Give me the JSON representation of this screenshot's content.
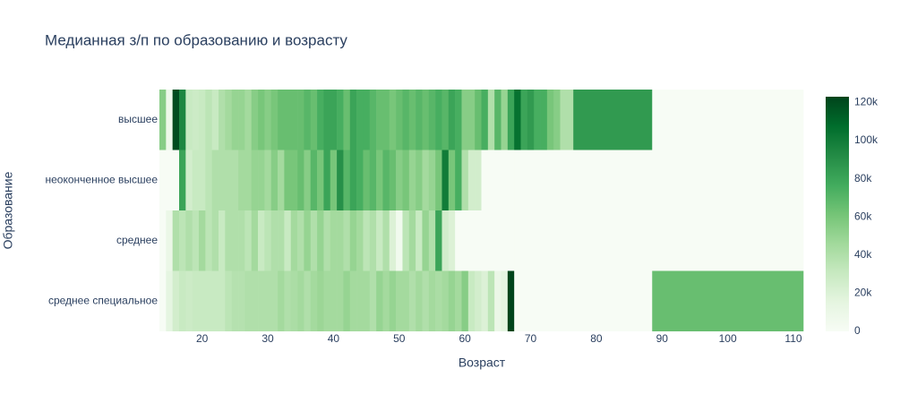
{
  "chart_data": {
    "type": "heatmap",
    "title": "Медианная з/п по образованию и возрасту",
    "xlabel": "Возраст",
    "ylabel": "Образование",
    "y": [
      "высшее",
      "неоконченное высшее",
      "среднее",
      "среднее специальное"
    ],
    "x": [
      14,
      15,
      16,
      17,
      18,
      19,
      20,
      21,
      22,
      23,
      24,
      25,
      26,
      27,
      28,
      29,
      30,
      31,
      32,
      33,
      34,
      35,
      36,
      37,
      38,
      39,
      40,
      41,
      42,
      43,
      44,
      45,
      46,
      47,
      48,
      49,
      50,
      51,
      52,
      53,
      54,
      55,
      56,
      57,
      58,
      59,
      60,
      61,
      62,
      63,
      64,
      65,
      66,
      67,
      68,
      69,
      70,
      71,
      72,
      73,
      74,
      75,
      76,
      77,
      100
    ],
    "z": [
      [
        55000,
        8000,
        120000,
        95000,
        30000,
        28000,
        30000,
        35000,
        30000,
        40000,
        45000,
        50000,
        50000,
        45000,
        55000,
        60000,
        55000,
        60000,
        65000,
        65000,
        65000,
        65000,
        70000,
        65000,
        75000,
        80000,
        80000,
        75000,
        65000,
        80000,
        75000,
        75000,
        70000,
        65000,
        65000,
        60000,
        65000,
        70000,
        65000,
        70000,
        65000,
        70000,
        75000,
        70000,
        80000,
        75000,
        55000,
        55000,
        65000,
        75000,
        40000,
        70000,
        50000,
        80000,
        105000,
        80000,
        85000,
        75000,
        75000,
        60000,
        55000,
        40000,
        40000,
        85000,
        0
      ],
      [
        0,
        0,
        0,
        80000,
        25000,
        30000,
        30000,
        35000,
        40000,
        40000,
        40000,
        40000,
        45000,
        45000,
        50000,
        50000,
        45000,
        55000,
        45000,
        60000,
        60000,
        65000,
        55000,
        70000,
        60000,
        80000,
        60000,
        90000,
        70000,
        80000,
        75000,
        65000,
        70000,
        60000,
        70000,
        65000,
        55000,
        60000,
        50000,
        55000,
        45000,
        50000,
        60000,
        100000,
        60000,
        75000,
        40000,
        25000,
        25000,
        0,
        0,
        0,
        0,
        0,
        0,
        0,
        0,
        0,
        0,
        0,
        0,
        0,
        0,
        0,
        0
      ],
      [
        0,
        10000,
        40000,
        35000,
        40000,
        35000,
        45000,
        35000,
        40000,
        30000,
        40000,
        40000,
        40000,
        35000,
        45000,
        30000,
        35000,
        40000,
        40000,
        30000,
        45000,
        40000,
        50000,
        40000,
        50000,
        40000,
        45000,
        45000,
        40000,
        50000,
        45000,
        35000,
        40000,
        30000,
        40000,
        20000,
        5000,
        35000,
        45000,
        30000,
        50000,
        40000,
        80000,
        25000,
        20000,
        0,
        0,
        0,
        0,
        0,
        0,
        0,
        0,
        0,
        0,
        0,
        0,
        0,
        0,
        0,
        0,
        0,
        0,
        0,
        0
      ],
      [
        0,
        15000,
        25000,
        30000,
        28000,
        30000,
        30000,
        30000,
        30000,
        30000,
        35000,
        38000,
        38000,
        40000,
        40000,
        40000,
        40000,
        40000,
        45000,
        40000,
        42000,
        45000,
        40000,
        45000,
        48000,
        45000,
        45000,
        45000,
        50000,
        45000,
        45000,
        45000,
        40000,
        50000,
        45000,
        50000,
        45000,
        45000,
        40000,
        45000,
        40000,
        45000,
        42000,
        45000,
        50000,
        45000,
        55000,
        30000,
        25000,
        20000,
        35000,
        10000,
        15000,
        123000,
        0,
        0,
        0,
        0,
        0,
        0,
        0,
        0,
        0,
        0,
        65000
      ]
    ],
    "xlim": [
      13.5,
      111.5
    ],
    "xticks": [
      20,
      30,
      40,
      50,
      60,
      70,
      80,
      90,
      100,
      110
    ],
    "zlim": [
      0,
      123000
    ],
    "zticks": [
      0,
      {
        "value": 20000,
        "label": "20k"
      },
      {
        "value": 40000,
        "label": "40k"
      },
      {
        "value": 60000,
        "label": "60k"
      },
      {
        "value": 80000,
        "label": "80k"
      },
      {
        "value": 100000,
        "label": "100k"
      },
      {
        "value": 120000,
        "label": "120k"
      }
    ],
    "colorscale": [
      "#f7fcf5",
      "#e5f5e0",
      "#c7e9c0",
      "#a1d99b",
      "#74c476",
      "#41ab5d",
      "#238b45",
      "#006d2c",
      "#00441b"
    ]
  }
}
